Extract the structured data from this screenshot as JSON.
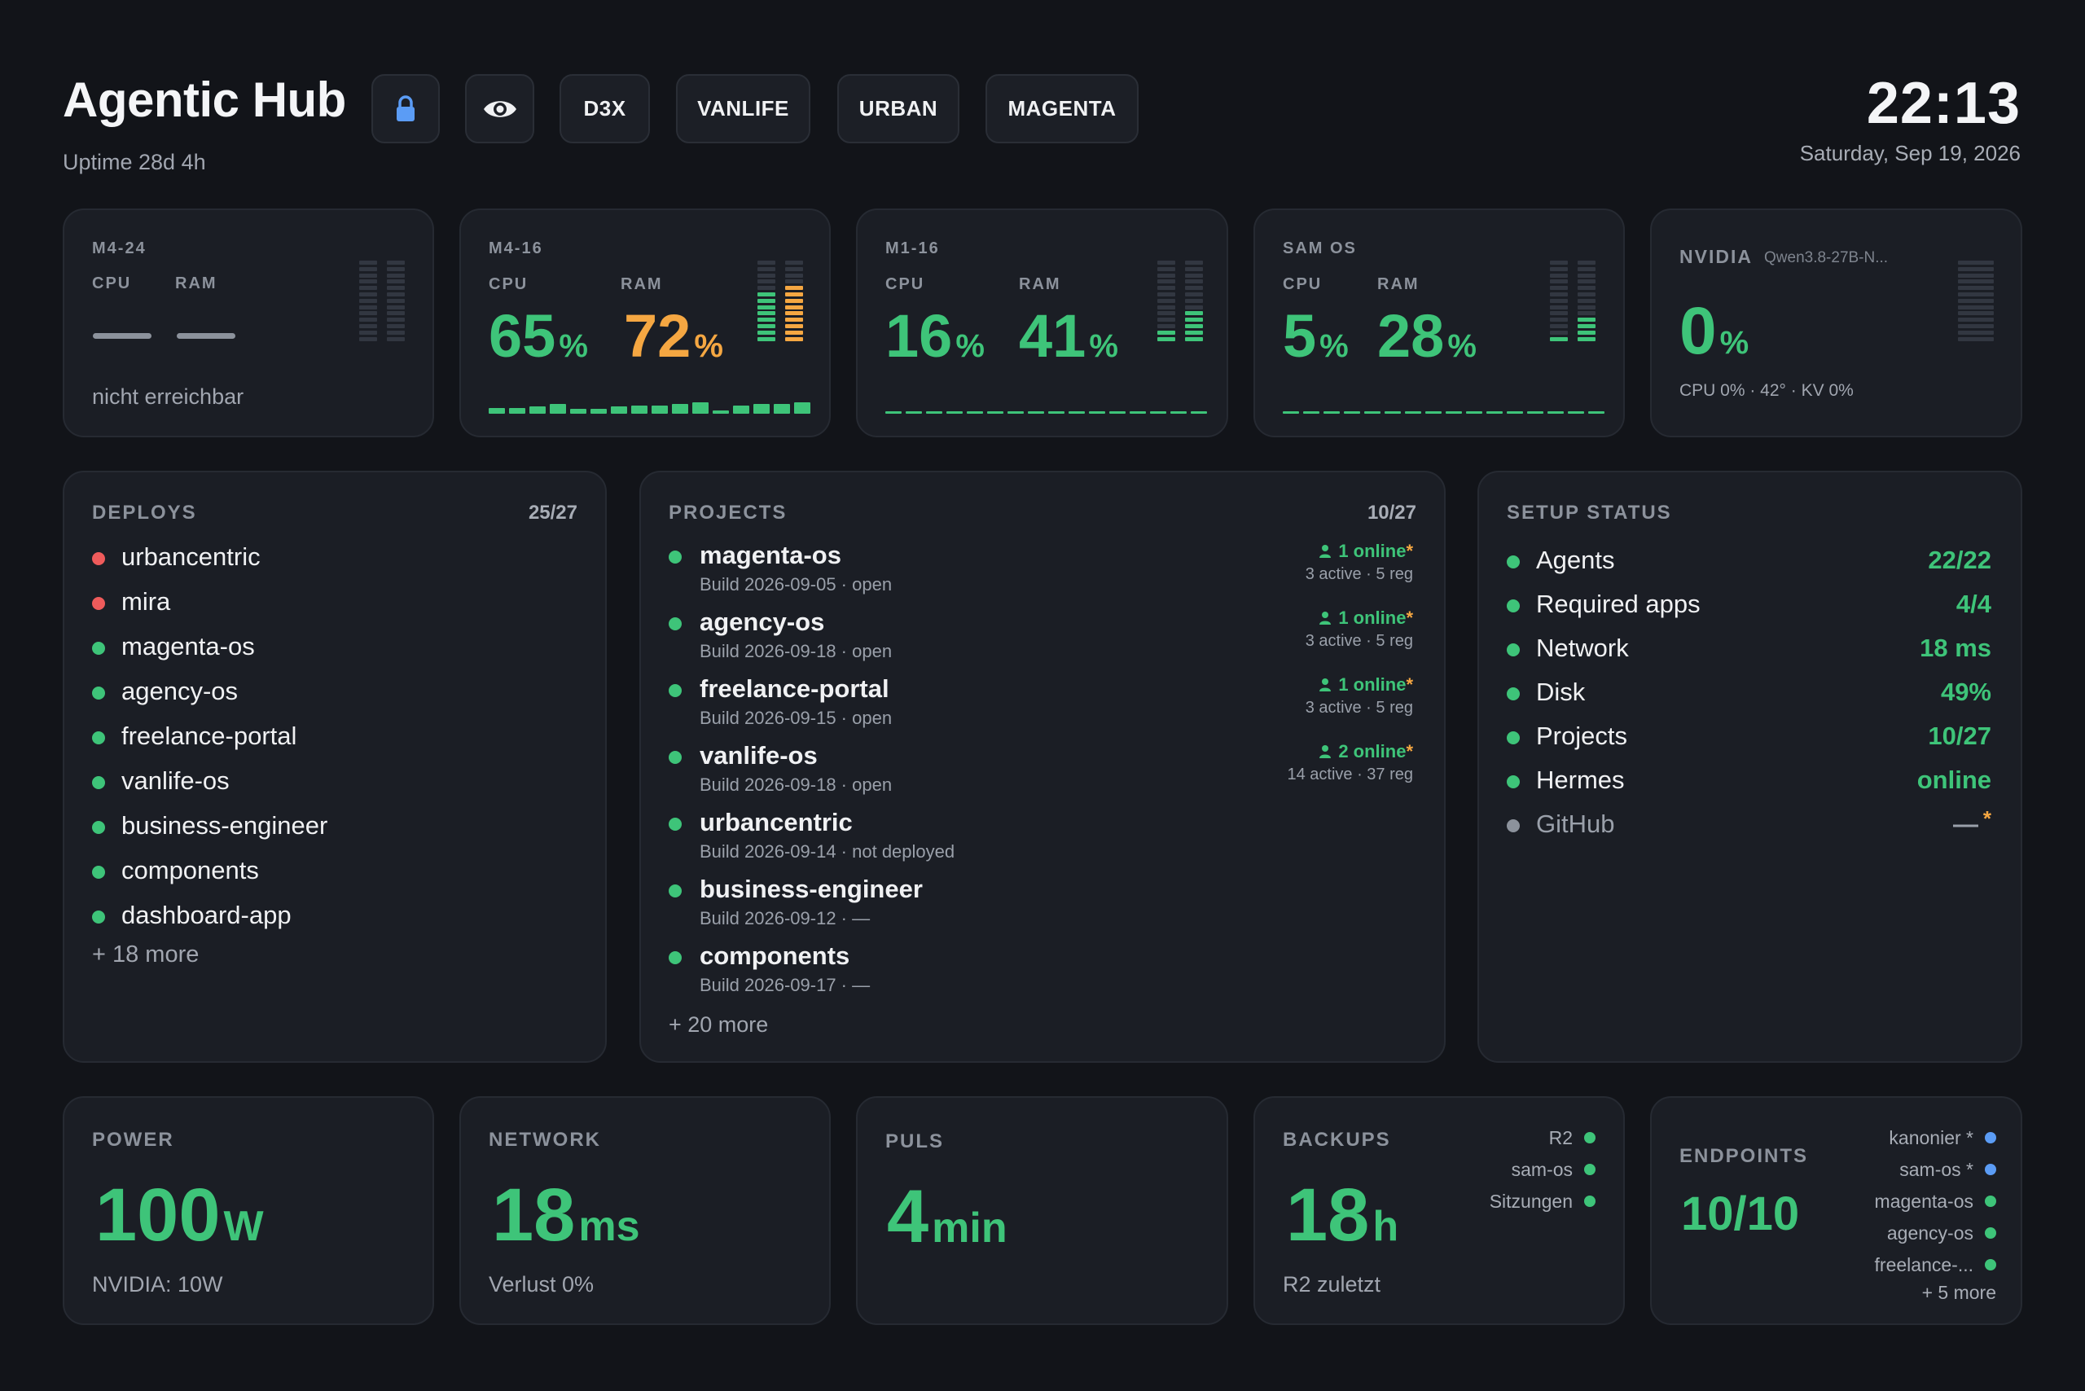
{
  "header": {
    "title": "Agentic Hub",
    "uptime": "Uptime 28d 4h",
    "buttons": [
      "D3X",
      "VANLIFE",
      "URBAN",
      "MAGENTA"
    ],
    "lock_icon": "lock-icon",
    "eye_icon": "eye-icon",
    "time": "22:13",
    "date": "Saturday, Sep 19, 2026"
  },
  "machines": [
    {
      "name": "M4-24",
      "cpu_label": "CPU",
      "ram_label": "RAM",
      "status": "nicht erreichbar"
    },
    {
      "name": "M4-16",
      "cpu_label": "CPU",
      "ram_label": "RAM",
      "cpu": "65",
      "ram": "72",
      "unit": "%"
    },
    {
      "name": "M1-16",
      "cpu_label": "CPU",
      "ram_label": "RAM",
      "cpu": "16",
      "ram": "41",
      "unit": "%"
    },
    {
      "name": "SAM OS",
      "cpu_label": "CPU",
      "ram_label": "RAM",
      "cpu": "5",
      "ram": "28",
      "unit": "%"
    },
    {
      "name": "NVIDIA",
      "model": "Qwen3.8-27B-N...",
      "value": "0",
      "unit": "%",
      "details": "CPU 0% · 42° · KV 0%"
    }
  ],
  "deploys": {
    "title": "DEPLOYS",
    "count": "25/27",
    "items": [
      {
        "name": "urbancentric",
        "status": "red"
      },
      {
        "name": "mira",
        "status": "red"
      },
      {
        "name": "magenta-os",
        "status": "green"
      },
      {
        "name": "agency-os",
        "status": "green"
      },
      {
        "name": "freelance-portal",
        "status": "green"
      },
      {
        "name": "vanlife-os",
        "status": "green"
      },
      {
        "name": "business-engineer",
        "status": "green"
      },
      {
        "name": "components",
        "status": "green"
      },
      {
        "name": "dashboard-app",
        "status": "green"
      }
    ],
    "more": "+ 18 more"
  },
  "projects": {
    "title": "PROJECTS",
    "count": "10/27",
    "items": [
      {
        "name": "magenta-os",
        "build": "Build 2026-09-05 · open",
        "online": "1 online",
        "stats": "3 active · 5 reg"
      },
      {
        "name": "agency-os",
        "build": "Build 2026-09-18 · open",
        "online": "1 online",
        "stats": "3 active · 5 reg"
      },
      {
        "name": "freelance-portal",
        "build": "Build 2026-09-15 · open",
        "online": "1 online",
        "stats": "3 active · 5 reg"
      },
      {
        "name": "vanlife-os",
        "build": "Build 2026-09-18 · open",
        "online": "2 online",
        "stats": "14 active · 37 reg"
      },
      {
        "name": "urbancentric",
        "build": "Build 2026-09-14 · not deployed"
      },
      {
        "name": "business-engineer",
        "build": "Build 2026-09-12 · —"
      },
      {
        "name": "components",
        "build": "Build 2026-09-17 · —"
      }
    ],
    "more": "+ 20 more"
  },
  "setup": {
    "title": "SETUP STATUS",
    "items": [
      {
        "label": "Agents",
        "value": "22/22"
      },
      {
        "label": "Required apps",
        "value": "4/4"
      },
      {
        "label": "Network",
        "value": "18 ms"
      },
      {
        "label": "Disk",
        "value": "49%"
      },
      {
        "label": "Projects",
        "value": "10/27"
      },
      {
        "label": "Hermes",
        "value": "online"
      },
      {
        "label": "GitHub",
        "value": "—"
      }
    ]
  },
  "power": {
    "title": "POWER",
    "value": "100",
    "unit": "W",
    "sub": "NVIDIA: 10W"
  },
  "network": {
    "title": "NETWORK",
    "value": "18",
    "unit": "ms",
    "sub": "Verlust 0%"
  },
  "puls": {
    "title": "PULS",
    "value": "4",
    "unit": "min"
  },
  "backups": {
    "title": "BACKUPS",
    "value": "18",
    "unit": "h",
    "sub": "R2 zuletzt",
    "targets": [
      "R2",
      "sam-os",
      "Sitzungen"
    ]
  },
  "endpoints": {
    "title": "ENDPOINTS",
    "value": "10/10",
    "items": [
      "kanonier *",
      "sam-os *",
      "magenta-os",
      "agency-os",
      "freelance-..."
    ],
    "more": "+ 5 more"
  },
  "colors": {
    "green": "#3ec479",
    "orange": "#f5a742",
    "red": "#ef5b5b",
    "blue": "#5b9cf5",
    "grey": "#8c929c"
  },
  "meters": {
    "m4_24": {
      "cpu_level": 0,
      "ram_level": 0
    },
    "m4_16": {
      "cpu_level": 0.65,
      "ram_level": 0.72
    },
    "m1_16": {
      "cpu_level": 0.16,
      "ram_level": 0.41
    },
    "sam_os": {
      "cpu_level": 0.05,
      "ram_level": 0.28
    },
    "nvidia": {
      "cpu_level": 0,
      "ram_level": 0
    }
  }
}
